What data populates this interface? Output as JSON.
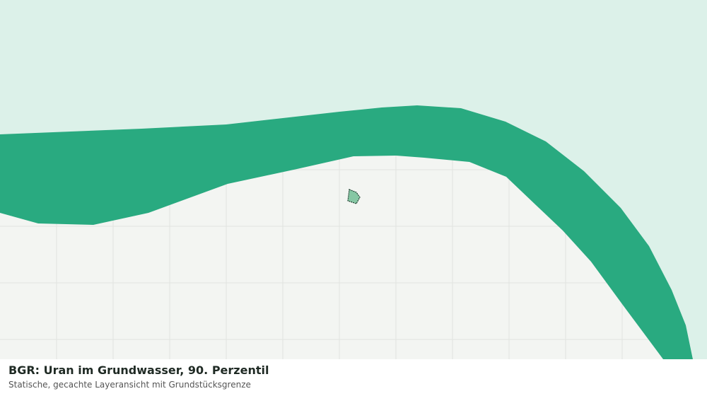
{
  "header": {
    "title": "BGR: Uran im Grundwasser, 90. Perzentil",
    "subtitle": "Statische, gecachte Layeransicht mit Grundstücksgrenze"
  }
}
